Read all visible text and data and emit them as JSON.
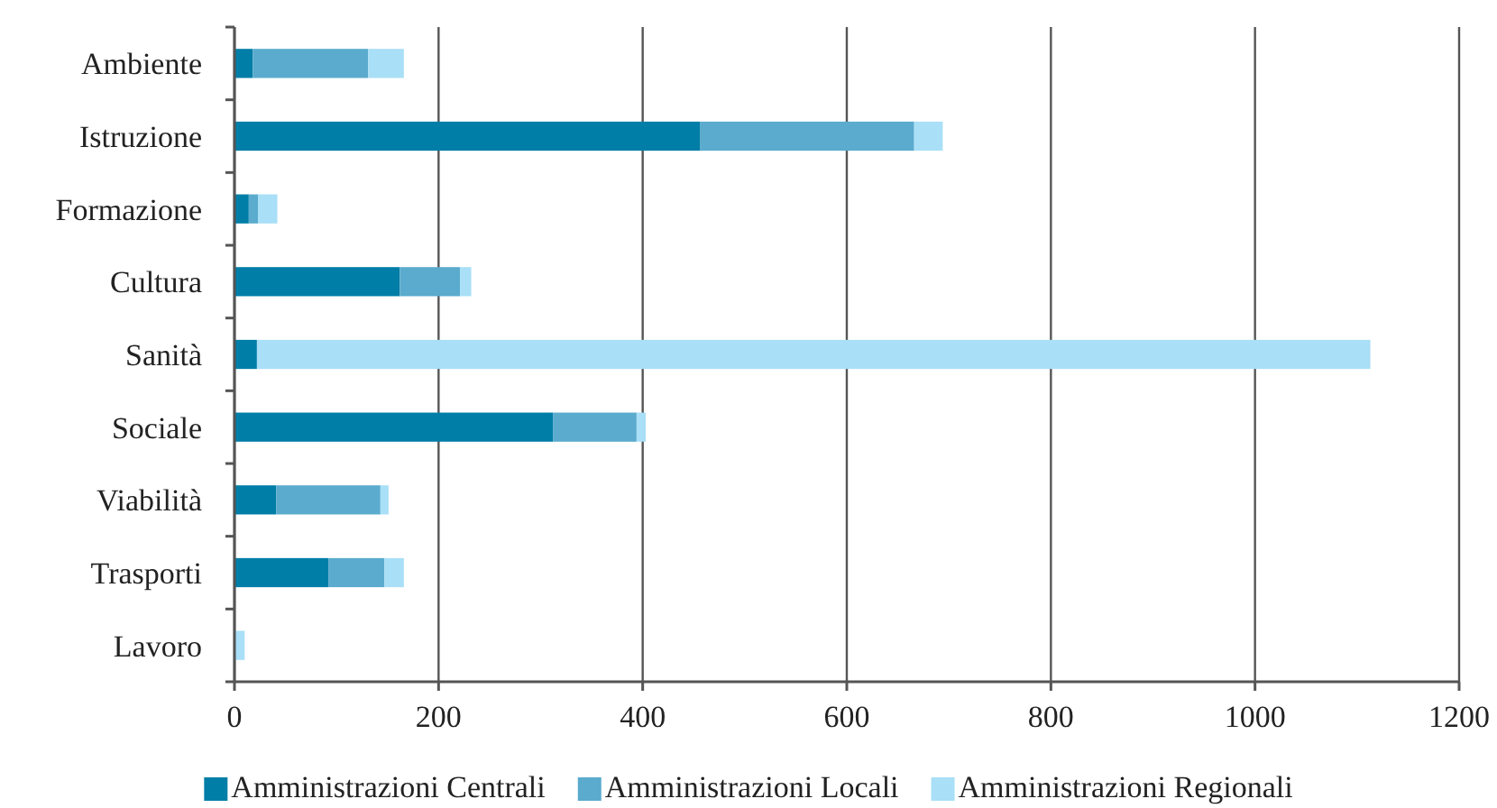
{
  "chart_data": {
    "type": "bar",
    "orientation": "horizontal",
    "stacked": true,
    "categories": [
      "Ambiente",
      "Istruzione",
      "Formazione",
      "Cultura",
      "Sanità",
      "Sociale",
      "Viabilità",
      "Trasporti",
      "Lavoro"
    ],
    "series": [
      {
        "name": "Amministrazioni Centrali",
        "color": "#007ea7",
        "values": [
          18,
          456,
          14,
          162,
          22,
          312,
          41,
          92,
          0
        ]
      },
      {
        "name": "Amministrazioni Locali",
        "color": "#5aabcd",
        "values": [
          113,
          210,
          9,
          59,
          0,
          82,
          102,
          55,
          0
        ]
      },
      {
        "name": "Amministrazioni Regionali",
        "color": "#a9dff7",
        "values": [
          35,
          28,
          19,
          11,
          1091,
          9,
          8,
          19,
          10
        ]
      }
    ],
    "xlim": [
      0,
      1200
    ],
    "xticks": [
      0,
      200,
      400,
      600,
      800,
      1000,
      1200
    ],
    "grid": "x",
    "legend": "bottom"
  }
}
